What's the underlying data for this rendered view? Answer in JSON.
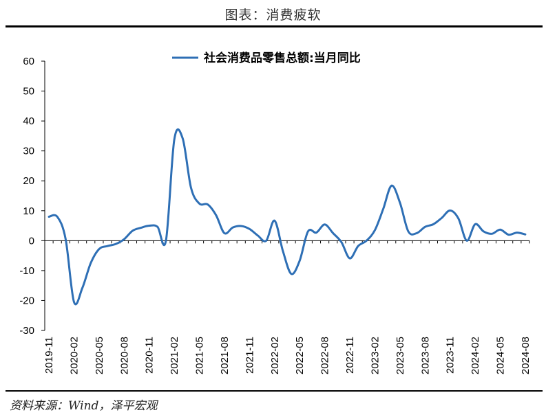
{
  "figure_title": "图表：消费疲软",
  "source_note": "资料来源：Wind，泽平宏观",
  "colors": {
    "line": "#2e6fb5",
    "axis": "#000000"
  },
  "chart_data": {
    "type": "line",
    "title": "",
    "xlabel": "",
    "ylabel": "",
    "ylim": [
      -30,
      60
    ],
    "yticks": [
      "60",
      "50",
      "40",
      "30",
      "20",
      "10",
      "0",
      "-10",
      "-20",
      "-30"
    ],
    "xtick_labels": [
      "2019-11",
      "2020-02",
      "2020-05",
      "2020-08",
      "2020-11",
      "2021-02",
      "2021-05",
      "2021-08",
      "2021-11",
      "2022-02",
      "2022-05",
      "2022-08",
      "2022-11",
      "2023-02",
      "2023-05",
      "2023-08",
      "2023-11",
      "2024-02",
      "2024-05",
      "2024-08"
    ],
    "legend": "top-center",
    "grid": false,
    "series": [
      {
        "name": "社会消费品零售总额:当月同比",
        "x": [
          "2019-11",
          "2019-12",
          "2020-01",
          "2020-02",
          "2020-03",
          "2020-04",
          "2020-05",
          "2020-06",
          "2020-07",
          "2020-08",
          "2020-09",
          "2020-10",
          "2020-11",
          "2020-12",
          "2021-01",
          "2021-02",
          "2021-03",
          "2021-04",
          "2021-05",
          "2021-06",
          "2021-07",
          "2021-08",
          "2021-09",
          "2021-10",
          "2021-11",
          "2021-12",
          "2022-01",
          "2022-02",
          "2022-03",
          "2022-04",
          "2022-05",
          "2022-06",
          "2022-07",
          "2022-08",
          "2022-09",
          "2022-10",
          "2022-11",
          "2022-12",
          "2023-01",
          "2023-02",
          "2023-03",
          "2023-04",
          "2023-05",
          "2023-06",
          "2023-07",
          "2023-08",
          "2023-09",
          "2023-10",
          "2023-11",
          "2023-12",
          "2024-01",
          "2024-02",
          "2024-03",
          "2024-04",
          "2024-05",
          "2024-06",
          "2024-07",
          "2024-08"
        ],
        "values": [
          8.0,
          8.0,
          0.5,
          -20.5,
          -15.8,
          -7.5,
          -2.8,
          -1.8,
          -1.1,
          0.5,
          3.3,
          4.3,
          5.0,
          4.6,
          0.0,
          33.8,
          34.2,
          17.7,
          12.4,
          12.1,
          8.5,
          2.5,
          4.4,
          4.9,
          3.9,
          1.7,
          0.0,
          6.7,
          -3.5,
          -11.1,
          -6.7,
          3.1,
          2.7,
          5.4,
          2.5,
          -0.5,
          -5.9,
          -1.8,
          0.0,
          3.5,
          10.6,
          18.4,
          12.7,
          3.1,
          2.5,
          4.6,
          5.5,
          7.6,
          10.1,
          7.4,
          0.0,
          5.5,
          3.1,
          2.3,
          3.7,
          2.0,
          2.7,
          2.1
        ]
      }
    ]
  }
}
